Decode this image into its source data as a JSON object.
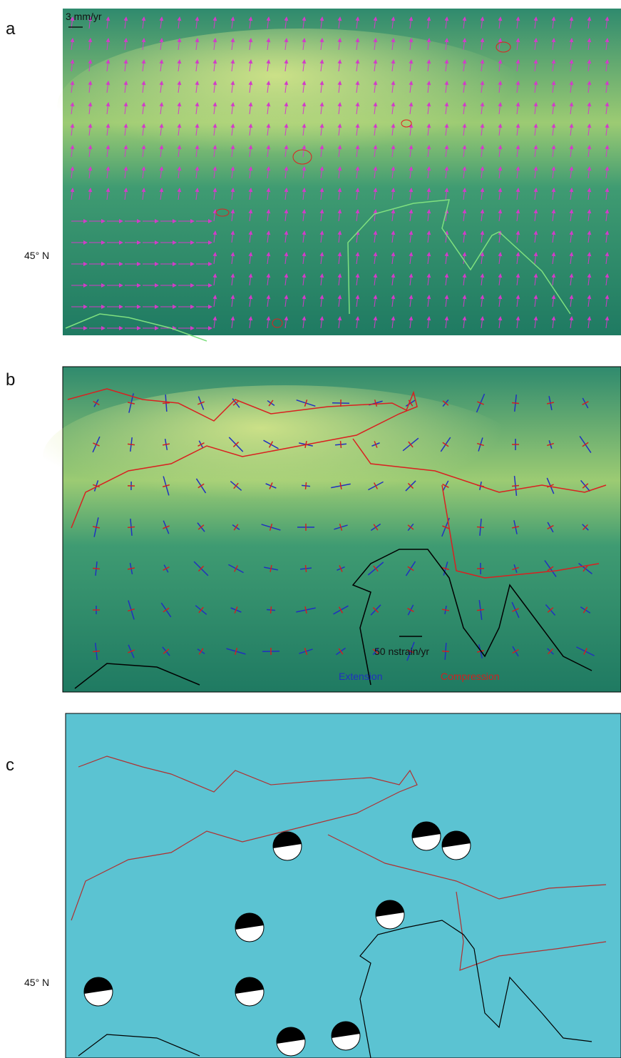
{
  "panels": [
    {
      "label": "a",
      "scale_label": "3 mm/yr",
      "lat_label": "45° N"
    },
    {
      "label": "b",
      "scale_label": "50 nstrain/yr",
      "legend": [
        "Extension",
        "Compression"
      ]
    },
    {
      "label": "c",
      "lat_label": "45° N"
    }
  ]
}
